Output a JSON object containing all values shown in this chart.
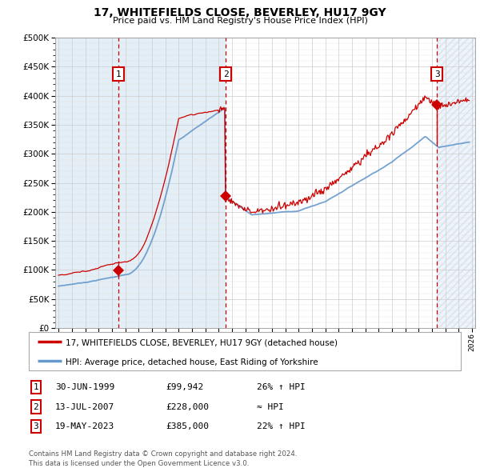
{
  "title": "17, WHITEFIELDS CLOSE, BEVERLEY, HU17 9GY",
  "subtitle": "Price paid vs. HM Land Registry's House Price Index (HPI)",
  "legend_line1": "17, WHITEFIELDS CLOSE, BEVERLEY, HU17 9GY (detached house)",
  "legend_line2": "HPI: Average price, detached house, East Riding of Yorkshire",
  "sale1_date": 1999.49,
  "sale1_price": 99942,
  "sale2_date": 2007.53,
  "sale2_price": 228000,
  "sale3_date": 2023.38,
  "sale3_price": 385000,
  "table_rows": [
    [
      "1",
      "30-JUN-1999",
      "£99,942",
      "26% ↑ HPI"
    ],
    [
      "2",
      "13-JUL-2007",
      "£228,000",
      "≈ HPI"
    ],
    [
      "3",
      "19-MAY-2023",
      "£385,000",
      "22% ↑ HPI"
    ]
  ],
  "footnote1": "Contains HM Land Registry data © Crown copyright and database right 2024.",
  "footnote2": "This data is licensed under the Open Government Licence v3.0.",
  "hpi_color": "#6699cc",
  "price_color": "#cc0000",
  "bg_color": "#cfe0f0",
  "ylim": [
    0,
    500000
  ],
  "xlim_start": 1994.75,
  "xlim_end": 2026.25
}
